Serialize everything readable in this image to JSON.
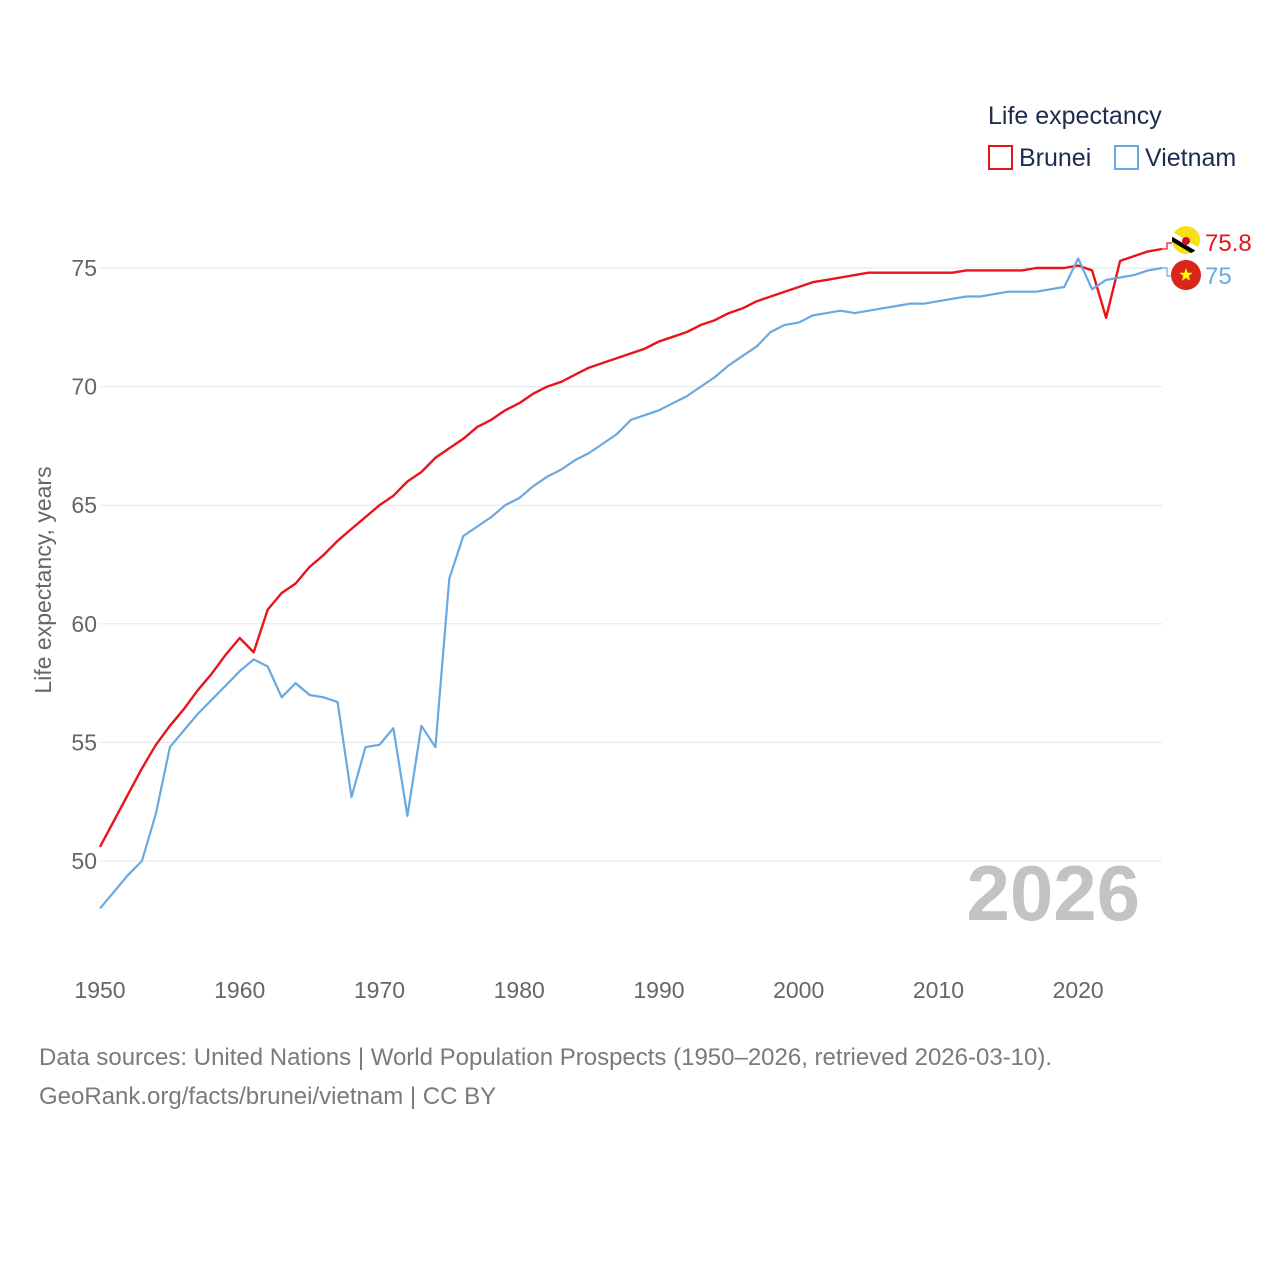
{
  "chart_data": {
    "type": "line",
    "ylabel": "Life expectancy, years",
    "xlabel": "",
    "xlim": [
      1950,
      2026
    ],
    "ylim": [
      47,
      77.5
    ],
    "y_ticks": [
      50,
      55,
      60,
      65,
      70,
      75
    ],
    "x_ticks": [
      1950,
      1960,
      1970,
      1980,
      1990,
      2000,
      2010,
      2020
    ],
    "legend_title": "Life expectancy",
    "legend_position": "top-right",
    "current_year_label": "2026",
    "grid": true,
    "x": [
      1950,
      1951,
      1952,
      1953,
      1954,
      1955,
      1956,
      1957,
      1958,
      1959,
      1960,
      1961,
      1962,
      1963,
      1964,
      1965,
      1966,
      1967,
      1968,
      1969,
      1970,
      1971,
      1972,
      1973,
      1974,
      1975,
      1976,
      1977,
      1978,
      1979,
      1980,
      1981,
      1982,
      1983,
      1984,
      1985,
      1986,
      1987,
      1988,
      1989,
      1990,
      1991,
      1992,
      1993,
      1994,
      1995,
      1996,
      1997,
      1998,
      1999,
      2000,
      2001,
      2002,
      2003,
      2004,
      2005,
      2006,
      2007,
      2008,
      2009,
      2010,
      2011,
      2012,
      2013,
      2014,
      2015,
      2016,
      2017,
      2018,
      2019,
      2020,
      2021,
      2022,
      2023,
      2024,
      2025,
      2026
    ],
    "series": [
      {
        "name": "Brunei",
        "color": "#e8141b",
        "end_label": "75.8",
        "flag": "brunei-flag",
        "values": [
          50.6,
          51.7,
          52.8,
          53.9,
          54.9,
          55.7,
          56.4,
          57.2,
          57.9,
          58.7,
          59.4,
          58.8,
          60.6,
          61.3,
          61.7,
          62.4,
          62.9,
          63.5,
          64.0,
          64.5,
          65.0,
          65.4,
          66.0,
          66.4,
          67.0,
          67.4,
          67.8,
          68.3,
          68.6,
          69.0,
          69.3,
          69.7,
          70.0,
          70.2,
          70.5,
          70.8,
          71.0,
          71.2,
          71.4,
          71.6,
          71.9,
          72.1,
          72.3,
          72.6,
          72.8,
          73.1,
          73.3,
          73.6,
          73.8,
          74.0,
          74.2,
          74.4,
          74.5,
          74.6,
          74.7,
          74.8,
          74.8,
          74.8,
          74.8,
          74.8,
          74.8,
          74.8,
          74.9,
          74.9,
          74.9,
          74.9,
          74.9,
          75.0,
          75.0,
          75.0,
          75.1,
          74.9,
          72.9,
          75.3,
          75.5,
          75.7,
          75.8
        ]
      },
      {
        "name": "Vietnam",
        "color": "#6aa8e0",
        "end_label": "75",
        "flag": "vietnam-flag",
        "values": [
          48.0,
          48.7,
          49.4,
          50.0,
          52.0,
          54.8,
          55.5,
          56.2,
          56.8,
          57.4,
          58.0,
          58.5,
          58.2,
          56.9,
          57.5,
          57.0,
          56.9,
          56.7,
          52.7,
          54.8,
          54.9,
          55.6,
          51.9,
          55.7,
          54.8,
          61.9,
          63.7,
          64.1,
          64.5,
          65.0,
          65.3,
          65.8,
          66.2,
          66.5,
          66.9,
          67.2,
          67.6,
          68.0,
          68.6,
          68.8,
          69.0,
          69.3,
          69.6,
          70.0,
          70.4,
          70.9,
          71.3,
          71.7,
          72.3,
          72.6,
          72.7,
          73.0,
          73.1,
          73.2,
          73.1,
          73.2,
          73.3,
          73.4,
          73.5,
          73.5,
          73.6,
          73.7,
          73.8,
          73.8,
          73.9,
          74.0,
          74.0,
          74.0,
          74.1,
          74.2,
          75.4,
          74.1,
          74.5,
          74.6,
          74.7,
          74.9,
          75.0
        ]
      }
    ]
  },
  "footer": {
    "line1": "Data sources: United Nations | World Population Prospects (1950–2026, retrieved 2026-03-10).",
    "line2": "GeoRank.org/facts/brunei/vietnam | CC BY"
  },
  "colors": {
    "grid": "#e6e6e6",
    "tick_text": "#666666",
    "legend_text": "#1d2b4f",
    "year_watermark": "#c3c3c3"
  }
}
